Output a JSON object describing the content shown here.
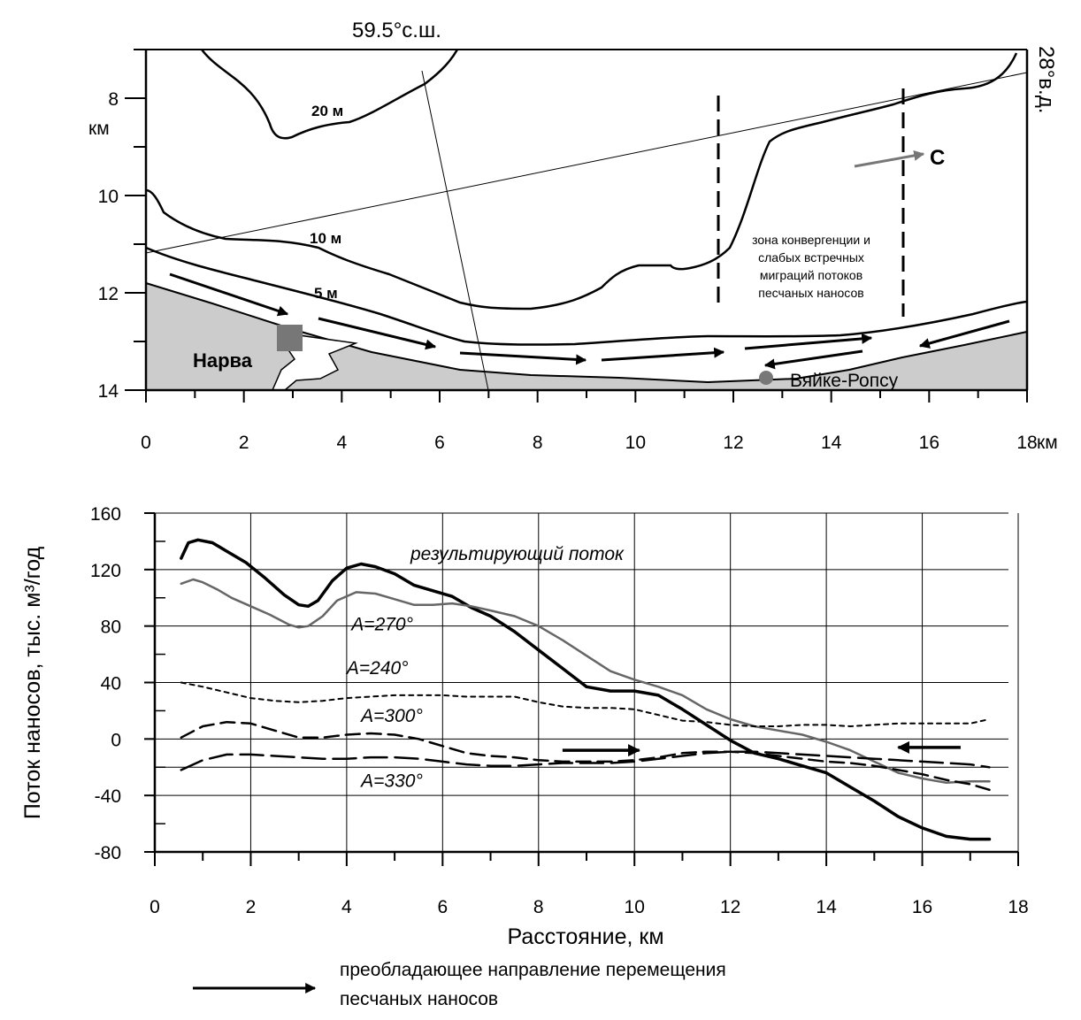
{
  "chart_data": [
    {
      "type": "map",
      "corner_labels": {
        "top_latitude": "59.5°с.ш.",
        "right_longitude": "28°в.д."
      },
      "x_axis": {
        "ticks": [
          "0",
          "2",
          "4",
          "6",
          "8",
          "10",
          "12",
          "14",
          "16",
          "18"
        ],
        "unit": "км",
        "range": [
          0,
          18
        ]
      },
      "y_axis": {
        "ticks": [
          "8",
          "10",
          "12",
          "14"
        ],
        "unit": "км",
        "range": [
          7,
          14
        ]
      },
      "isobaths": [
        {
          "label": "20 м"
        },
        {
          "label": "10 м"
        },
        {
          "label": "5 м"
        }
      ],
      "places": [
        {
          "name": "Нарва",
          "marker": "square"
        },
        {
          "name": "Вяйке-Ропсу",
          "marker": "circle"
        }
      ],
      "north_label": "С",
      "zone_text": [
        "зона конвергенции и",
        "слабых встречных",
        "миграций потоков",
        "песчаных наносов"
      ],
      "colors": {
        "land": "#cccccc",
        "marker": "#777777",
        "line": "#000000"
      }
    },
    {
      "type": "line",
      "xlabel": "Расстояние, км",
      "ylabel": "Поток наносов, тыс. м³/год",
      "xlim": [
        0,
        18
      ],
      "ylim": [
        -80,
        160
      ],
      "x_ticks": [
        "0",
        "2",
        "4",
        "6",
        "8",
        "10",
        "12",
        "14",
        "16",
        "18"
      ],
      "y_ticks": [
        "160",
        "120",
        "80",
        "40",
        "0",
        "-40",
        "-80"
      ],
      "grid": true,
      "annotation": "результирующий поток",
      "series": [
        {
          "name": "результирующий поток",
          "style": "solid-bold",
          "color": "#000000",
          "x": [
            0.55,
            0.7,
            0.9,
            1.2,
            1.5,
            1.9,
            2.3,
            2.7,
            3.0,
            3.2,
            3.4,
            3.7,
            4.0,
            4.3,
            4.6,
            5.0,
            5.4,
            5.8,
            6.2,
            6.6,
            7.0,
            7.5,
            8.0,
            8.5,
            9.0,
            9.5,
            10.0,
            10.5,
            11.0,
            11.5,
            12.0,
            12.5,
            13.0,
            13.5,
            14.0,
            14.5,
            15.0,
            15.5,
            16.0,
            16.5,
            17.0,
            17.4
          ],
          "y": [
            128,
            139,
            141,
            139,
            133,
            125,
            114,
            102,
            95,
            94,
            98,
            112,
            121,
            124,
            122,
            117,
            109,
            105,
            101,
            93,
            87,
            76,
            63,
            50,
            37,
            34,
            34,
            31,
            21,
            10,
            -1,
            -10,
            -14,
            -19,
            -24,
            -34,
            -44,
            -55,
            -63,
            -69,
            -71,
            -71
          ]
        },
        {
          "name": "A=270°",
          "style": "solid",
          "color": "#666666",
          "x": [
            0.55,
            0.8,
            1.0,
            1.3,
            1.6,
            2.0,
            2.4,
            2.8,
            3.0,
            3.2,
            3.5,
            3.8,
            4.2,
            4.6,
            5.0,
            5.4,
            5.8,
            6.2,
            6.6,
            7.0,
            7.5,
            8.0,
            8.5,
            9.0,
            9.5,
            10.0,
            10.5,
            11.0,
            11.5,
            12.0,
            12.5,
            13.0,
            13.5,
            14.0,
            14.5,
            15.0,
            15.5,
            16.0,
            16.5,
            17.0,
            17.4
          ],
          "y": [
            110,
            113,
            111,
            106,
            100,
            94,
            88,
            81,
            79,
            80,
            87,
            98,
            104,
            103,
            99,
            95,
            95,
            96,
            94,
            91,
            87,
            80,
            70,
            59,
            48,
            42,
            37,
            31,
            21,
            14,
            9,
            6,
            3,
            -2,
            -8,
            -16,
            -24,
            -28,
            -31,
            -30,
            -30
          ]
        },
        {
          "name": "A=240°",
          "style": "short-dashed",
          "color": "#000000",
          "x": [
            0.55,
            1.0,
            1.5,
            2.0,
            2.5,
            3.0,
            3.5,
            4.0,
            4.5,
            5.0,
            5.5,
            6.0,
            6.5,
            7.0,
            7.5,
            8.0,
            8.5,
            9.0,
            9.5,
            10.0,
            10.5,
            11.0,
            11.5,
            12.0,
            12.5,
            13.0,
            13.5,
            14.0,
            14.5,
            15.0,
            15.5,
            16.0,
            16.5,
            17.0,
            17.4
          ],
          "y": [
            40,
            37,
            33,
            29,
            27,
            26,
            27,
            29,
            30,
            31,
            31,
            31,
            30,
            30,
            30,
            26,
            23,
            22,
            22,
            21,
            17,
            13,
            12,
            10,
            9,
            9,
            10,
            10,
            9,
            10,
            11,
            11,
            11,
            11,
            14
          ]
        },
        {
          "name": "A=300°",
          "style": "dashed",
          "color": "#000000",
          "x": [
            0.55,
            1.0,
            1.5,
            2.0,
            2.5,
            3.0,
            3.5,
            4.0,
            4.5,
            5.0,
            5.5,
            6.0,
            6.5,
            7.0,
            7.5,
            8.0,
            8.5,
            9.0,
            9.5,
            10.0,
            10.5,
            11.0,
            11.5,
            12.0,
            12.5,
            13.0,
            13.5,
            14.0,
            14.5,
            15.0,
            15.5,
            16.0,
            16.5,
            17.0,
            17.4
          ],
          "y": [
            1,
            9,
            12,
            11,
            6,
            1,
            1,
            3,
            4,
            3,
            0,
            -5,
            -10,
            -12,
            -13,
            -15,
            -16,
            -16,
            -16,
            -15,
            -13,
            -10,
            -9,
            -9,
            -10,
            -12,
            -14,
            -16,
            -17,
            -19,
            -22,
            -25,
            -29,
            -32,
            -36
          ]
        },
        {
          "name": "A=330°",
          "style": "long-dashed",
          "color": "#000000",
          "x": [
            0.55,
            1.0,
            1.5,
            2.0,
            2.5,
            3.0,
            3.5,
            4.0,
            4.5,
            5.0,
            5.5,
            6.0,
            6.5,
            7.0,
            7.5,
            8.0,
            8.5,
            9.0,
            9.5,
            10.0,
            10.5,
            11.0,
            11.5,
            12.0,
            12.5,
            13.0,
            13.5,
            14.0,
            14.5,
            15.0,
            15.5,
            16.0,
            16.5,
            17.0,
            17.4
          ],
          "y": [
            -22,
            -15,
            -11,
            -11,
            -12,
            -13,
            -14,
            -14,
            -13,
            -13,
            -14,
            -16,
            -18,
            -19,
            -19,
            -18,
            -17,
            -17,
            -17,
            -16,
            -14,
            -12,
            -10,
            -9,
            -9,
            -10,
            -11,
            -12,
            -13,
            -14,
            -15,
            -16,
            -17,
            -18,
            -20
          ]
        }
      ],
      "series_labels": [
        {
          "text": "A=270°",
          "x": 4.1,
          "y": 77
        },
        {
          "text": "A=240°",
          "x": 4.0,
          "y": 46
        },
        {
          "text": "A=300°",
          "x": 4.3,
          "y": 12
        },
        {
          "text": "A=330°",
          "x": 4.3,
          "y": -34
        }
      ],
      "flow_arrows": [
        {
          "direction": "right",
          "x_from": 8.5,
          "x_to": 10.1,
          "y": -8
        },
        {
          "direction": "left",
          "x_from": 16.8,
          "x_to": 15.5,
          "y": -6
        }
      ],
      "legend": {
        "text": [
          "преобладающее направление перемещения",
          "песчаных наносов"
        ],
        "placement": "bottom"
      }
    }
  ]
}
